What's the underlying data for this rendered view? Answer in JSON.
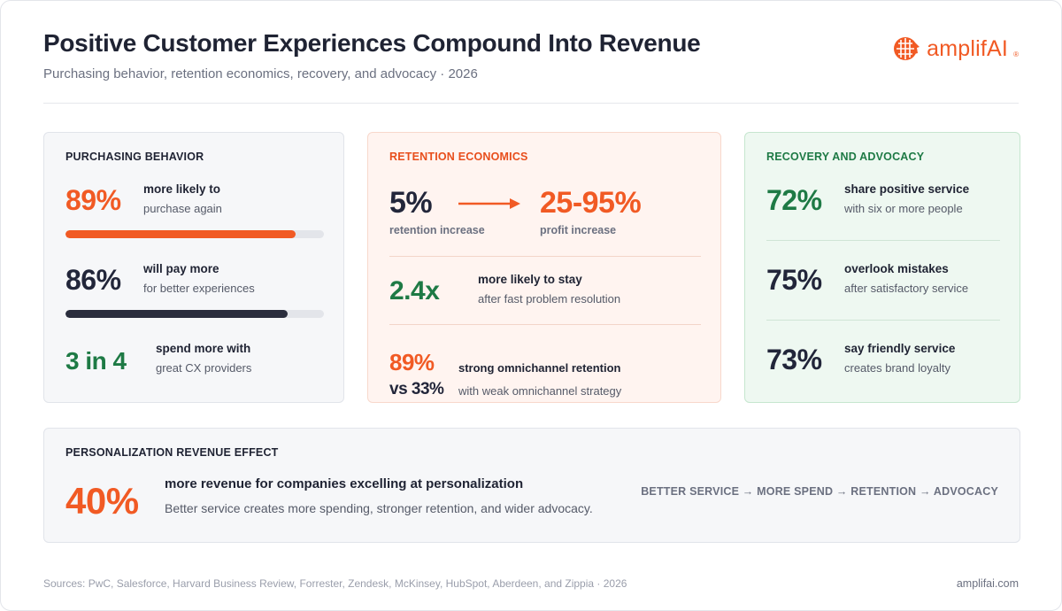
{
  "header": {
    "title": "Positive Customer Experiences Compound Into Revenue",
    "subtitle": "Purchasing behavior, retention economics, recovery, and advocacy · 2026",
    "brand": "amplifAI",
    "brand_mark": "®"
  },
  "purchasing": {
    "heading": "PURCHASING BEHAVIOR",
    "stats": [
      {
        "value": "89%",
        "label": "more likely to",
        "sub": "purchase again",
        "bar_fraction": 0.89,
        "bar_color": "#f15a24"
      },
      {
        "value": "86%",
        "label": "will pay more",
        "sub": "for better experiences",
        "bar_fraction": 0.86,
        "bar_color": "#2a2d3d"
      },
      {
        "value": "3 in 4",
        "label": "spend more with",
        "sub": "great CX providers"
      }
    ]
  },
  "retention": {
    "heading": "RETENTION ECONOMICS",
    "from_value": "5%",
    "from_label": "retention increase",
    "to_value": "25-95%",
    "to_label": "profit increase",
    "arrow_icon": "arrow-right-icon",
    "stay_value": "2.4x",
    "stay_label": "more likely to stay",
    "stay_sub": "after fast problem resolution",
    "omni_value": "89%",
    "omni_label": "strong omnichannel retention",
    "omni_vs": "vs 33%",
    "omni_sub": "with weak omnichannel strategy"
  },
  "recovery": {
    "heading": "RECOVERY AND ADVOCACY",
    "stats": [
      {
        "value": "72%",
        "label": "share positive service",
        "sub": "with six or more people"
      },
      {
        "value": "75%",
        "label": "overlook mistakes",
        "sub": "after satisfactory service"
      },
      {
        "value": "73%",
        "label": "say friendly service",
        "sub": "creates brand loyalty"
      }
    ]
  },
  "personalization": {
    "heading": "PERSONALIZATION REVENUE EFFECT",
    "value": "40%",
    "label": "more revenue for companies excelling at personalization",
    "sub": "Better service creates more spending, stronger retention, and wider advocacy.",
    "flow": "BETTER SERVICE → MORE SPEND → RETENTION → ADVOCACY"
  },
  "footer": {
    "sources": "Sources: PwC, Salesforce, Harvard Business Review, Forrester, Zendesk, McKinsey, HubSpot, Aberdeen, and Zippia · 2026",
    "site": "amplifai.com"
  },
  "colors": {
    "accent_orange": "#f15a24",
    "accent_green": "#1e7a45",
    "dark": "#22263a"
  }
}
